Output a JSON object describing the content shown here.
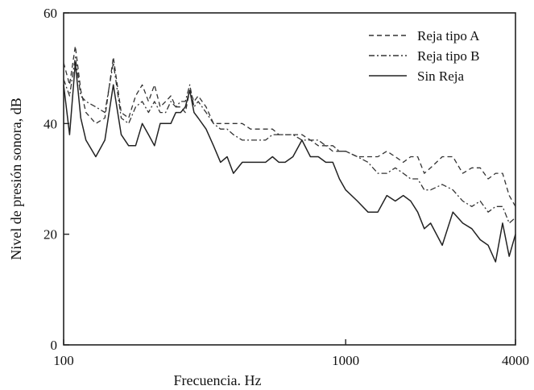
{
  "chart_data": {
    "type": "line",
    "xlabel": "Frecuencia. Hz",
    "ylabel": "Nivel de presión sonora, dB",
    "xscale": "log",
    "xlim": [
      100,
      4000
    ],
    "ylim": [
      0,
      60
    ],
    "xticks": [
      100,
      1000,
      4000
    ],
    "xtick_labels": [
      "100",
      "1000",
      "4000"
    ],
    "yticks": [
      0,
      20,
      40,
      60
    ],
    "ytick_labels": [
      "0",
      "20",
      "40",
      "60"
    ],
    "grid": false,
    "legend_position": "top-right",
    "series": [
      {
        "name": "Reja tipo A",
        "style": "dashed",
        "color": "#333333",
        "x": [
          100,
          105,
          110,
          115,
          120,
          130,
          140,
          150,
          160,
          170,
          180,
          190,
          200,
          210,
          220,
          230,
          240,
          250,
          260,
          270,
          280,
          290,
          300,
          320,
          340,
          360,
          380,
          400,
          430,
          460,
          490,
          520,
          550,
          580,
          610,
          650,
          700,
          750,
          800,
          850,
          900,
          950,
          1000,
          1100,
          1200,
          1300,
          1400,
          1500,
          1600,
          1700,
          1800,
          1900,
          2000,
          2200,
          2400,
          2600,
          2800,
          3000,
          3200,
          3400,
          3600,
          3800,
          4000
        ],
        "y": [
          51,
          47,
          54,
          46,
          42,
          40,
          41,
          52,
          42,
          41,
          45,
          47,
          44,
          47,
          43,
          44,
          45,
          43,
          43,
          42,
          46,
          44,
          45,
          43,
          40,
          40,
          40,
          40,
          40,
          39,
          39,
          39,
          39,
          38,
          38,
          38,
          38,
          37,
          36,
          36,
          35,
          35,
          35,
          34,
          34,
          34,
          35,
          34,
          33,
          34,
          34,
          31,
          32,
          34,
          34,
          31,
          32,
          32,
          30,
          31,
          31,
          27,
          25
        ]
      },
      {
        "name": "Reja tipo B",
        "style": "dash-dot",
        "color": "#333333",
        "x": [
          100,
          105,
          110,
          115,
          120,
          130,
          140,
          150,
          160,
          170,
          180,
          190,
          200,
          210,
          220,
          230,
          240,
          250,
          260,
          270,
          280,
          290,
          300,
          320,
          340,
          360,
          380,
          400,
          430,
          460,
          490,
          520,
          550,
          580,
          610,
          650,
          700,
          750,
          800,
          850,
          900,
          950,
          1000,
          1100,
          1200,
          1300,
          1400,
          1500,
          1600,
          1700,
          1800,
          1900,
          2000,
          2200,
          2400,
          2600,
          2800,
          3000,
          3200,
          3400,
          3600,
          3800,
          4000
        ],
        "y": [
          48,
          45,
          52,
          45,
          44,
          43,
          42,
          51,
          41,
          40,
          43,
          44,
          42,
          44,
          42,
          42,
          44,
          43,
          44,
          44,
          47,
          43,
          44,
          42,
          40,
          39,
          39,
          38,
          37,
          37,
          37,
          37,
          38,
          38,
          38,
          38,
          37,
          37,
          37,
          36,
          36,
          35,
          35,
          34,
          33,
          31,
          31,
          32,
          31,
          30,
          30,
          28,
          28,
          29,
          28,
          26,
          25,
          26,
          24,
          25,
          25,
          22,
          23
        ]
      },
      {
        "name": "Sin Reja",
        "style": "solid",
        "color": "#222222",
        "x": [
          100,
          105,
          110,
          115,
          120,
          130,
          140,
          150,
          160,
          170,
          180,
          190,
          200,
          210,
          220,
          230,
          240,
          250,
          260,
          270,
          280,
          290,
          300,
          320,
          340,
          360,
          380,
          400,
          430,
          460,
          490,
          520,
          550,
          580,
          610,
          650,
          700,
          750,
          800,
          850,
          900,
          950,
          1000,
          1100,
          1200,
          1300,
          1400,
          1500,
          1600,
          1700,
          1800,
          1900,
          2000,
          2200,
          2400,
          2600,
          2800,
          3000,
          3200,
          3400,
          3600,
          3800,
          4000
        ],
        "y": [
          47,
          38,
          51,
          41,
          37,
          34,
          37,
          47,
          38,
          36,
          36,
          40,
          38,
          36,
          40,
          40,
          40,
          42,
          42,
          43,
          46,
          42,
          41,
          39,
          36,
          33,
          34,
          31,
          33,
          33,
          33,
          33,
          34,
          33,
          33,
          34,
          37,
          34,
          34,
          33,
          33,
          30,
          28,
          26,
          24,
          24,
          27,
          26,
          27,
          26,
          24,
          21,
          22,
          18,
          24,
          22,
          21,
          19,
          18,
          15,
          22,
          16,
          20
        ]
      }
    ]
  }
}
